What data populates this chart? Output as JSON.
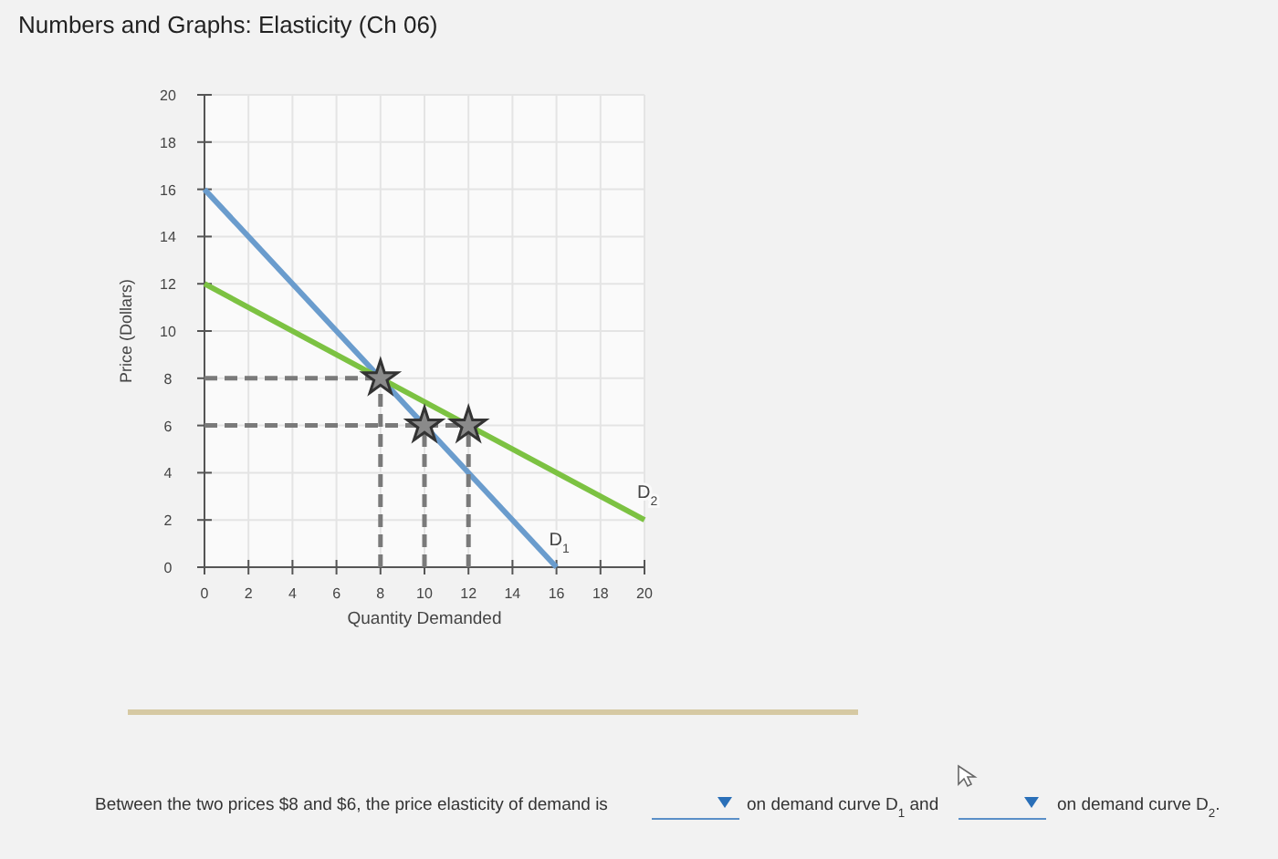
{
  "chart_data": {
    "type": "line",
    "title": "Numbers and Graphs: Elasticity (Ch 06)",
    "xlabel": "Quantity Demanded",
    "ylabel": "Price (Dollars)",
    "xlim": [
      0,
      20
    ],
    "ylim": [
      0,
      20
    ],
    "xticks": [
      0,
      2,
      4,
      6,
      8,
      10,
      12,
      14,
      16,
      18,
      20
    ],
    "yticks": [
      0,
      2,
      4,
      6,
      8,
      10,
      12,
      14,
      16,
      18,
      20
    ],
    "grid": true,
    "series": [
      {
        "name": "D$_{1}$",
        "color": "#6a9ccd",
        "x": [
          0,
          16
        ],
        "values": [
          16,
          0
        ],
        "line_style": "solid",
        "marker": "none"
      },
      {
        "name": "D$_{2}$",
        "color": "#7cc242",
        "x": [
          0,
          20
        ],
        "values": [
          12,
          2
        ],
        "line_style": "solid",
        "marker": "none"
      },
      {
        "color": "#7a7a7a",
        "x": [
          0,
          8
        ],
        "values": [
          8,
          8
        ],
        "line_style": "dashed",
        "marker": "none"
      },
      {
        "color": "#7a7a7a",
        "x": [
          0,
          12
        ],
        "values": [
          6,
          6
        ],
        "line_style": "dashed",
        "marker": "none"
      },
      {
        "color": "#7a7a7a",
        "x": [
          8,
          8
        ],
        "values": [
          0,
          8
        ],
        "line_style": "dashed",
        "marker": "none"
      },
      {
        "color": "#7a7a7a",
        "x": [
          10,
          10
        ],
        "values": [
          0,
          6
        ],
        "line_style": "dashed",
        "marker": "none"
      },
      {
        "color": "#7a7a7a",
        "x": [
          12,
          12
        ],
        "values": [
          0,
          6
        ],
        "line_style": "dashed",
        "marker": "none"
      },
      {
        "type": "scatter",
        "color": "#8a8a8a",
        "x": [
          8,
          10,
          12
        ],
        "values": [
          8,
          6,
          6
        ],
        "marker": "star"
      }
    ],
    "annotations": [
      "Between the two prices $8 and $6, the price elasticity of demand is",
      "on demand curve D$_{1}$ and",
      "on demand curve D$_{2}$."
    ]
  }
}
